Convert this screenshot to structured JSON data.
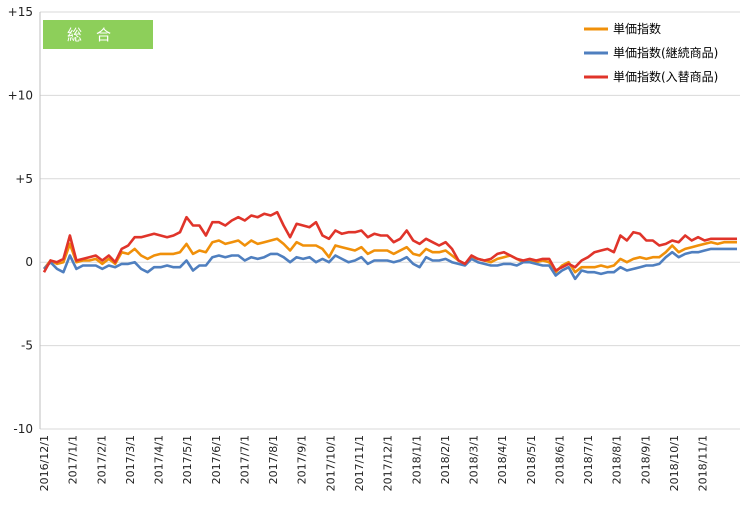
{
  "chart_data": {
    "type": "line",
    "title": "",
    "badge": "総合",
    "xlabel": "",
    "ylabel": "",
    "ylim": [
      -10,
      15
    ],
    "y_ticks": [
      15,
      10,
      5,
      0,
      -5,
      -10
    ],
    "y_tick_labels": [
      "+15",
      "+10",
      "+5",
      "0",
      "-5",
      "-10"
    ],
    "gridlines": "horizontal",
    "legend_position": "top-right",
    "x_tick_labels": [
      "2016/12/1",
      "2017/1/1",
      "2017/2/1",
      "2017/3/1",
      "2017/4/1",
      "2017/5/1",
      "2017/6/1",
      "2017/7/1",
      "2017/8/1",
      "2017/9/1",
      "2017/10/1",
      "2017/11/1",
      "2017/12/1",
      "2018/1/1",
      "2018/2/1",
      "2018/3/1",
      "2018/4/1",
      "2018/5/1",
      "2018/6/1",
      "2018/7/1",
      "2018/8/1",
      "2018/9/1",
      "2018/10/1",
      "2018/11/1"
    ],
    "x_unit": "week",
    "series": [
      {
        "name": "単価指数",
        "color": "#f0900a",
        "values": [
          -0.4,
          0.1,
          -0.1,
          0.0,
          1.1,
          0.0,
          0.1,
          0.1,
          0.2,
          -0.1,
          0.2,
          -0.1,
          0.6,
          0.5,
          0.8,
          0.4,
          0.2,
          0.4,
          0.5,
          0.5,
          0.5,
          0.6,
          1.1,
          0.5,
          0.7,
          0.6,
          1.2,
          1.3,
          1.1,
          1.2,
          1.3,
          1.0,
          1.3,
          1.1,
          1.2,
          1.3,
          1.4,
          1.1,
          0.7,
          1.2,
          1.0,
          1.0,
          1.0,
          0.8,
          0.3,
          1.0,
          0.9,
          0.8,
          0.7,
          0.9,
          0.5,
          0.7,
          0.7,
          0.7,
          0.5,
          0.7,
          0.9,
          0.5,
          0.4,
          0.8,
          0.6,
          0.6,
          0.7,
          0.4,
          0.1,
          -0.1,
          0.3,
          0.2,
          0.1,
          0.0,
          0.2,
          0.3,
          0.4,
          0.2,
          0.0,
          0.1,
          0.0,
          0.1,
          0.0,
          -0.6,
          -0.2,
          0.0,
          -0.6,
          -0.3,
          -0.3,
          -0.3,
          -0.2,
          -0.3,
          -0.2,
          0.2,
          0.0,
          0.2,
          0.3,
          0.2,
          0.3,
          0.3,
          0.6,
          1.0,
          0.6,
          0.8,
          0.9,
          1.0,
          1.1,
          1.2,
          1.1,
          1.2,
          1.2,
          1.2
        ]
      },
      {
        "name": "単価指数(継続商品)",
        "color": "#4f7fbf",
        "values": [
          -0.4,
          0.0,
          -0.4,
          -0.6,
          0.4,
          -0.4,
          -0.2,
          -0.2,
          -0.2,
          -0.4,
          -0.2,
          -0.3,
          -0.1,
          -0.1,
          0.0,
          -0.4,
          -0.6,
          -0.3,
          -0.3,
          -0.2,
          -0.3,
          -0.3,
          0.1,
          -0.5,
          -0.2,
          -0.2,
          0.3,
          0.4,
          0.3,
          0.4,
          0.4,
          0.1,
          0.3,
          0.2,
          0.3,
          0.5,
          0.5,
          0.3,
          0.0,
          0.3,
          0.2,
          0.3,
          0.0,
          0.2,
          0.0,
          0.4,
          0.2,
          0.0,
          0.1,
          0.3,
          -0.1,
          0.1,
          0.1,
          0.1,
          0.0,
          0.1,
          0.3,
          -0.1,
          -0.3,
          0.3,
          0.1,
          0.1,
          0.2,
          0.0,
          -0.1,
          -0.2,
          0.2,
          0.0,
          -0.1,
          -0.2,
          -0.2,
          -0.1,
          -0.1,
          -0.2,
          0.0,
          0.0,
          -0.1,
          -0.2,
          -0.2,
          -0.8,
          -0.5,
          -0.3,
          -1.0,
          -0.5,
          -0.6,
          -0.6,
          -0.7,
          -0.6,
          -0.6,
          -0.3,
          -0.5,
          -0.4,
          -0.3,
          -0.2,
          -0.2,
          -0.1,
          0.3,
          0.6,
          0.3,
          0.5,
          0.6,
          0.6,
          0.7,
          0.8,
          0.8,
          0.8,
          0.8,
          0.8
        ]
      },
      {
        "name": "単価指数(入替商品)",
        "color": "#e0342a",
        "values": [
          -0.6,
          0.1,
          0.0,
          0.2,
          1.6,
          0.1,
          0.2,
          0.3,
          0.4,
          0.1,
          0.4,
          0.0,
          0.8,
          1.0,
          1.5,
          1.5,
          1.6,
          1.7,
          1.6,
          1.5,
          1.6,
          1.8,
          2.7,
          2.2,
          2.2,
          1.6,
          2.4,
          2.4,
          2.2,
          2.5,
          2.7,
          2.5,
          2.8,
          2.7,
          2.9,
          2.8,
          3.0,
          2.2,
          1.5,
          2.3,
          2.2,
          2.1,
          2.4,
          1.6,
          1.4,
          1.9,
          1.7,
          1.8,
          1.8,
          1.9,
          1.5,
          1.7,
          1.6,
          1.6,
          1.2,
          1.4,
          1.9,
          1.3,
          1.1,
          1.4,
          1.2,
          1.0,
          1.2,
          0.8,
          0.1,
          -0.1,
          0.4,
          0.2,
          0.1,
          0.2,
          0.5,
          0.6,
          0.4,
          0.2,
          0.1,
          0.2,
          0.1,
          0.2,
          0.2,
          -0.5,
          -0.3,
          -0.1,
          -0.3,
          0.1,
          0.3,
          0.6,
          0.7,
          0.8,
          0.6,
          1.6,
          1.3,
          1.8,
          1.7,
          1.3,
          1.3,
          1.0,
          1.1,
          1.3,
          1.2,
          1.6,
          1.3,
          1.5,
          1.3,
          1.4,
          1.4,
          1.4,
          1.4,
          1.4
        ]
      }
    ]
  }
}
